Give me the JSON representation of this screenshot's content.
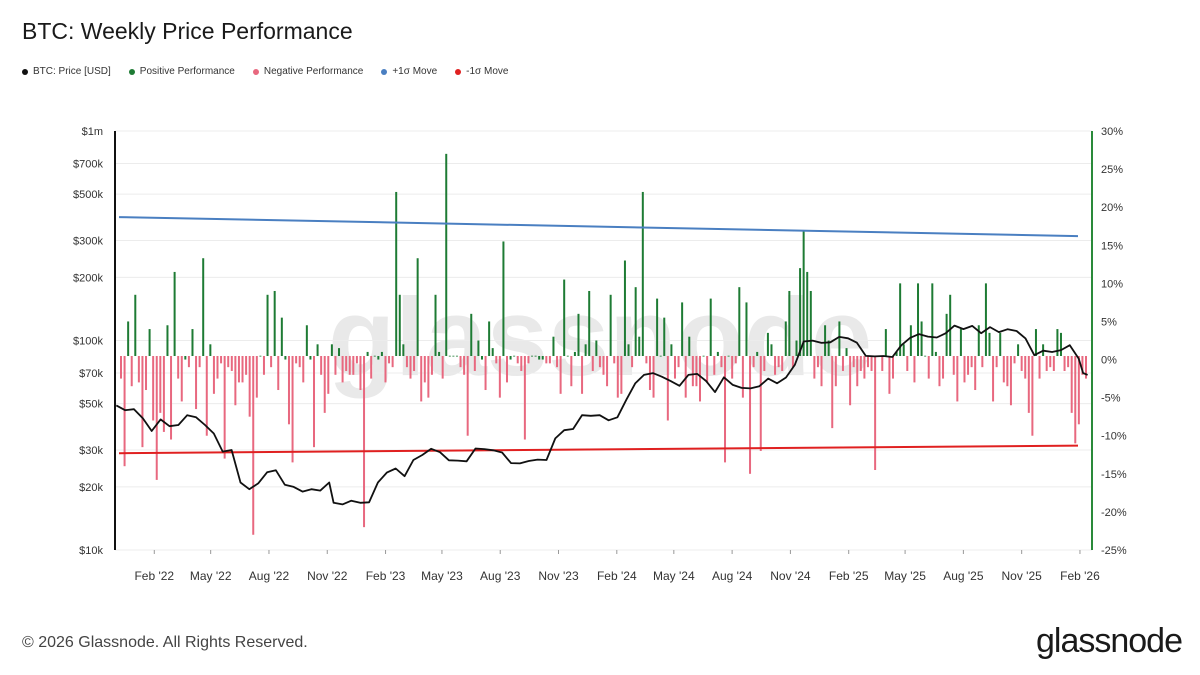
{
  "title": "BTC: Weekly Price Performance",
  "legend": [
    {
      "label": "BTC: Price [USD]",
      "color": "#111111"
    },
    {
      "label": "Positive Performance",
      "color": "#1e7b34"
    },
    {
      "label": "Negative Performance",
      "color": "#e8687f"
    },
    {
      "label": "+1σ Move",
      "color": "#4a7fc1"
    },
    {
      "label": "-1σ Move",
      "color": "#e02020"
    }
  ],
  "watermark": "glassnode",
  "footer": "© 2026 Glassnode. All Rights Reserved.",
  "brand": "glassnode",
  "colors": {
    "price": "#111111",
    "positive": "#1e7b34",
    "negative": "#e8687f",
    "plus_sigma": "#4a7fc1",
    "minus_sigma": "#e02020",
    "left_axis": "#111111",
    "right_axis": "#2a8a3a",
    "grid": "#ececec"
  },
  "chart_data": {
    "type": "bar+line",
    "title": "BTC: Weekly Price Performance",
    "x_tick_labels": [
      "Feb '22",
      "May '22",
      "Aug '22",
      "Nov '22",
      "Feb '23",
      "May '23",
      "Aug '23",
      "Nov '23",
      "Feb '24",
      "May '24",
      "Aug '24",
      "Nov '24",
      "Feb '25",
      "May '25",
      "Aug '25",
      "Nov '25",
      "Feb '26"
    ],
    "x_range": [
      "2021-12-01",
      "2026-02-20"
    ],
    "y_left": {
      "scale": "log",
      "range": [
        10000,
        1000000
      ],
      "ticks": [
        {
          "v": 10000,
          "label": "$10k"
        },
        {
          "v": 20000,
          "label": "$20k"
        },
        {
          "v": 30000,
          "label": "$30k"
        },
        {
          "v": 50000,
          "label": "$50k"
        },
        {
          "v": 70000,
          "label": "$70k"
        },
        {
          "v": 100000,
          "label": "$100k"
        },
        {
          "v": 200000,
          "label": "$200k"
        },
        {
          "v": 300000,
          "label": "$300k"
        },
        {
          "v": 500000,
          "label": "$500k"
        },
        {
          "v": 700000,
          "label": "$700k"
        },
        {
          "v": 1000000,
          "label": "$1m"
        }
      ]
    },
    "y_right": {
      "scale": "linear",
      "range": [
        -25,
        30
      ],
      "ticks": [
        {
          "v": 30,
          "label": "30%"
        },
        {
          "v": 25,
          "label": "25%"
        },
        {
          "v": 20,
          "label": "20%"
        },
        {
          "v": 15,
          "label": "15%"
        },
        {
          "v": 10,
          "label": "10%"
        },
        {
          "v": 5,
          "label": "5%"
        },
        {
          "v": 0,
          "label": "0%"
        },
        {
          "v": -5,
          "label": "-5%"
        },
        {
          "v": -10,
          "label": "-10%"
        },
        {
          "v": -15,
          "label": "-15%"
        },
        {
          "v": -20,
          "label": "-20%"
        },
        {
          "v": -25,
          "label": "-25%"
        }
      ]
    },
    "grid": true,
    "sigma_lines": {
      "plus": {
        "start": 18.7,
        "end": 16.2
      },
      "minus": {
        "start": -12.3,
        "end": -11.3
      }
    },
    "weekly_returns_pct": [
      -2.5,
      -14.0,
      5.0,
      -3.5,
      8.5,
      -3.0,
      -11.5,
      -4.0,
      4.0,
      -8.0,
      -15.8,
      -7.0,
      -9.5,
      4.5,
      -10.5,
      11.5,
      -2.5,
      -5.5,
      0.0,
      -1.0,
      4.0,
      -6.5,
      -1.0,
      13.3,
      -10.0,
      2.0,
      -4.5,
      -2.5,
      -0.5,
      -13.0,
      -1.0,
      -1.5,
      -6.0,
      -3.0,
      -3.0,
      -2.0,
      -7.5,
      -23.0,
      -5.0,
      0.5,
      -2.0,
      8.5,
      -1.0,
      9.0,
      -4.0,
      5.5,
      0.0,
      -8.5,
      -13.5,
      -0.5,
      -1.0,
      -3.0,
      4.5,
      0.0,
      -11.5,
      2.0,
      -2.0,
      -7.0,
      -4.5,
      2.0,
      -2.0,
      1.5,
      -3.0,
      -1.5,
      -2.0,
      -2.0,
      -0.5,
      -4.0,
      -22.0,
      1.0,
      -2.5,
      0.5,
      0.0,
      1.0,
      -3.0,
      -0.5,
      -1.0,
      22.0,
      8.5,
      2.0,
      -1.0,
      -2.5,
      -1.5,
      13.3,
      -5.5,
      -3.0,
      -5.0,
      -2.0,
      8.5,
      1.0,
      -2.5,
      27.0,
      0.5,
      0.5,
      0.5,
      -1.0,
      -2.0,
      -10.0,
      6.0,
      -1.5,
      2.5,
      0.0,
      -4.0,
      5.0,
      1.5,
      -0.5,
      -5.0,
      15.5,
      -3.0,
      0.0,
      0.5,
      -0.5,
      -1.5,
      -10.5,
      -0.5,
      0.5,
      0.5,
      0.0,
      0.0,
      -0.5,
      -0.5,
      3.0,
      -1.0,
      -4.5,
      10.5,
      0.5,
      -3.5,
      1.0,
      6.0,
      -4.5,
      2.0,
      9.0,
      -1.5,
      2.5,
      -1.0,
      -2.0,
      -3.5,
      8.5,
      -0.5,
      -5.0,
      -4.5,
      13.0,
      2.0,
      -1.0,
      9.5,
      3.0,
      22.0,
      -0.5,
      -4.0,
      -5.0,
      8.0,
      0.5,
      5.5,
      -8.0,
      2.0,
      -2.5,
      -1.0,
      7.5,
      -5.0,
      3.0,
      -3.5,
      -3.5,
      -5.5,
      0.5,
      -3.0,
      8.0,
      -2.0,
      1.0,
      -1.0,
      -13.5,
      0.5,
      -2.5,
      -0.5,
      9.5,
      -5.0,
      7.5,
      -15.0,
      -1.0,
      1.0,
      -12.0,
      -1.5,
      3.5,
      2.0,
      -2.0,
      -1.0,
      -1.5,
      5.0,
      9.0,
      -1.0,
      2.5,
      12.0,
      17.0,
      11.5,
      9.0,
      -2.5,
      -1.0,
      -3.5,
      4.5,
      2.5,
      -9.0,
      -3.5,
      5.0,
      -1.5,
      1.5,
      -6.0,
      -1.0,
      -3.5,
      -1.5,
      -2.5,
      -1.0,
      -1.5,
      -14.5,
      0.5,
      -1.5,
      4.0,
      -4.5,
      -2.5,
      1.0,
      10.0,
      2.0,
      -1.5,
      4.5,
      -3.0,
      10.0,
      5.0,
      0.5,
      -2.5,
      10.0,
      1.0,
      -3.5,
      -2.5,
      6.0,
      8.5,
      -2.0,
      -5.5,
      4.0,
      -3.0,
      -2.0,
      -1.0,
      -4.0,
      4.5,
      -1.0,
      10.0,
      3.5,
      -5.5,
      -1.0,
      3.5,
      -3.0,
      -3.5,
      -6.0,
      -0.5,
      2.0,
      -1.5,
      -2.5,
      -7.0,
      -10.0,
      4.0,
      -2.5,
      2.0,
      -1.5,
      -1.0,
      -1.5,
      4.0,
      3.5,
      -1.5,
      -1.0,
      -7.0,
      -11.0,
      -8.5,
      -2.0,
      -2.5
    ],
    "price_usd": [
      {
        "x": "2021-12-03",
        "y": 49000
      },
      {
        "x": "2021-12-17",
        "y": 46500
      },
      {
        "x": "2021-12-31",
        "y": 47000
      },
      {
        "x": "2022-01-14",
        "y": 42500
      },
      {
        "x": "2022-01-28",
        "y": 37000
      },
      {
        "x": "2022-02-11",
        "y": 42000
      },
      {
        "x": "2022-02-25",
        "y": 39000
      },
      {
        "x": "2022-03-11",
        "y": 39500
      },
      {
        "x": "2022-03-25",
        "y": 44000
      },
      {
        "x": "2022-04-08",
        "y": 43000
      },
      {
        "x": "2022-04-22",
        "y": 39500
      },
      {
        "x": "2022-05-06",
        "y": 36000
      },
      {
        "x": "2022-05-20",
        "y": 29500
      },
      {
        "x": "2022-06-03",
        "y": 30000
      },
      {
        "x": "2022-06-17",
        "y": 21000
      },
      {
        "x": "2022-07-01",
        "y": 19500
      },
      {
        "x": "2022-07-15",
        "y": 20800
      },
      {
        "x": "2022-07-29",
        "y": 23500
      },
      {
        "x": "2022-08-12",
        "y": 24000
      },
      {
        "x": "2022-08-26",
        "y": 20500
      },
      {
        "x": "2022-09-09",
        "y": 20000
      },
      {
        "x": "2022-09-23",
        "y": 19000
      },
      {
        "x": "2022-10-07",
        "y": 19500
      },
      {
        "x": "2022-10-21",
        "y": 19200
      },
      {
        "x": "2022-11-04",
        "y": 21000
      },
      {
        "x": "2022-11-11",
        "y": 16800
      },
      {
        "x": "2022-11-25",
        "y": 16500
      },
      {
        "x": "2022-12-09",
        "y": 17200
      },
      {
        "x": "2022-12-23",
        "y": 16800
      },
      {
        "x": "2023-01-06",
        "y": 16900
      },
      {
        "x": "2023-01-20",
        "y": 21000
      },
      {
        "x": "2023-02-03",
        "y": 23400
      },
      {
        "x": "2023-02-17",
        "y": 24500
      },
      {
        "x": "2023-03-03",
        "y": 22500
      },
      {
        "x": "2023-03-17",
        "y": 26900
      },
      {
        "x": "2023-03-31",
        "y": 28400
      },
      {
        "x": "2023-04-14",
        "y": 30400
      },
      {
        "x": "2023-04-28",
        "y": 29300
      },
      {
        "x": "2023-05-12",
        "y": 26800
      },
      {
        "x": "2023-05-26",
        "y": 26700
      },
      {
        "x": "2023-06-09",
        "y": 26500
      },
      {
        "x": "2023-06-23",
        "y": 30500
      },
      {
        "x": "2023-07-07",
        "y": 30300
      },
      {
        "x": "2023-07-21",
        "y": 29900
      },
      {
        "x": "2023-08-04",
        "y": 29200
      },
      {
        "x": "2023-08-18",
        "y": 26000
      },
      {
        "x": "2023-09-01",
        "y": 25900
      },
      {
        "x": "2023-09-15",
        "y": 26600
      },
      {
        "x": "2023-09-29",
        "y": 27000
      },
      {
        "x": "2023-10-13",
        "y": 26900
      },
      {
        "x": "2023-10-27",
        "y": 34100
      },
      {
        "x": "2023-11-10",
        "y": 37300
      },
      {
        "x": "2023-11-24",
        "y": 37800
      },
      {
        "x": "2023-12-08",
        "y": 44000
      },
      {
        "x": "2023-12-22",
        "y": 43700
      },
      {
        "x": "2024-01-05",
        "y": 44000
      },
      {
        "x": "2024-01-19",
        "y": 41600
      },
      {
        "x": "2024-02-02",
        "y": 43000
      },
      {
        "x": "2024-02-16",
        "y": 52100
      },
      {
        "x": "2024-03-01",
        "y": 62400
      },
      {
        "x": "2024-03-15",
        "y": 68500
      },
      {
        "x": "2024-03-29",
        "y": 69900
      },
      {
        "x": "2024-04-12",
        "y": 67200
      },
      {
        "x": "2024-04-26",
        "y": 64000
      },
      {
        "x": "2024-05-10",
        "y": 60800
      },
      {
        "x": "2024-05-24",
        "y": 68500
      },
      {
        "x": "2024-06-07",
        "y": 69300
      },
      {
        "x": "2024-06-21",
        "y": 64100
      },
      {
        "x": "2024-07-05",
        "y": 56700
      },
      {
        "x": "2024-07-19",
        "y": 66700
      },
      {
        "x": "2024-08-02",
        "y": 61400
      },
      {
        "x": "2024-08-16",
        "y": 59400
      },
      {
        "x": "2024-08-30",
        "y": 59100
      },
      {
        "x": "2024-09-13",
        "y": 60500
      },
      {
        "x": "2024-09-27",
        "y": 65800
      },
      {
        "x": "2024-10-11",
        "y": 62500
      },
      {
        "x": "2024-10-25",
        "y": 66600
      },
      {
        "x": "2024-11-08",
        "y": 76500
      },
      {
        "x": "2024-11-22",
        "y": 98900
      },
      {
        "x": "2024-12-06",
        "y": 99900
      },
      {
        "x": "2024-12-20",
        "y": 97400
      },
      {
        "x": "2025-01-03",
        "y": 98000
      },
      {
        "x": "2025-01-17",
        "y": 104000
      },
      {
        "x": "2025-01-31",
        "y": 102400
      },
      {
        "x": "2025-02-14",
        "y": 97600
      },
      {
        "x": "2025-02-28",
        "y": 84400
      },
      {
        "x": "2025-03-14",
        "y": 84000
      },
      {
        "x": "2025-03-28",
        "y": 84300
      },
      {
        "x": "2025-04-11",
        "y": 83400
      },
      {
        "x": "2025-04-25",
        "y": 94900
      },
      {
        "x": "2025-05-09",
        "y": 103000
      },
      {
        "x": "2025-05-23",
        "y": 107300
      },
      {
        "x": "2025-06-06",
        "y": 104400
      },
      {
        "x": "2025-06-20",
        "y": 103300
      },
      {
        "x": "2025-07-04",
        "y": 108200
      },
      {
        "x": "2025-07-18",
        "y": 117800
      },
      {
        "x": "2025-08-01",
        "y": 113300
      },
      {
        "x": "2025-08-15",
        "y": 117400
      },
      {
        "x": "2025-08-29",
        "y": 108400
      },
      {
        "x": "2025-09-12",
        "y": 115900
      },
      {
        "x": "2025-09-26",
        "y": 109700
      },
      {
        "x": "2025-10-10",
        "y": 113200
      },
      {
        "x": "2025-10-24",
        "y": 111000
      },
      {
        "x": "2025-11-07",
        "y": 102300
      },
      {
        "x": "2025-11-21",
        "y": 85100
      },
      {
        "x": "2025-12-05",
        "y": 89400
      },
      {
        "x": "2025-12-19",
        "y": 88100
      },
      {
        "x": "2026-01-02",
        "y": 90000
      },
      {
        "x": "2026-01-16",
        "y": 95000
      },
      {
        "x": "2026-01-30",
        "y": 82000
      },
      {
        "x": "2026-02-06",
        "y": 70000
      },
      {
        "x": "2026-02-13",
        "y": 68500
      }
    ]
  }
}
